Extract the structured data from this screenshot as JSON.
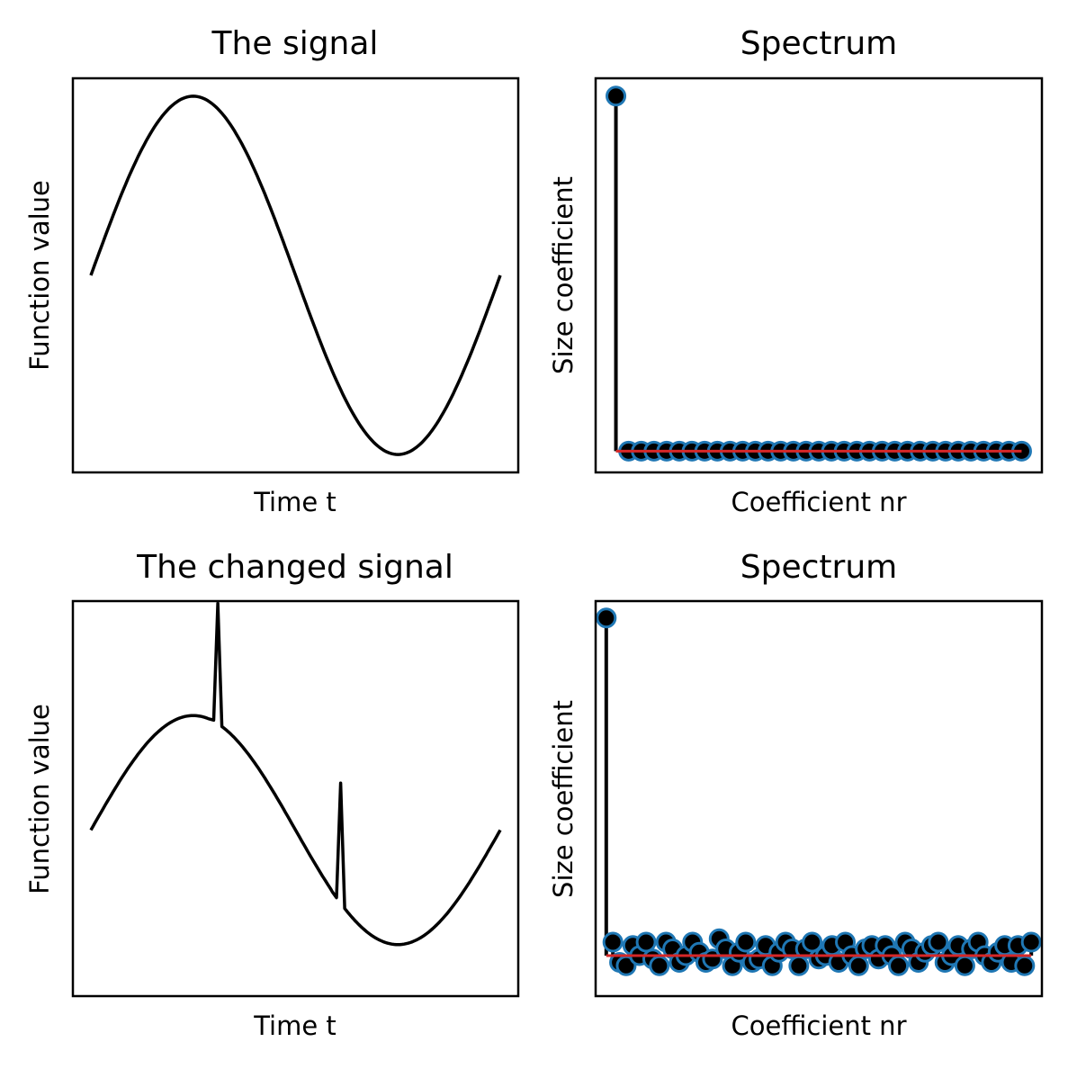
{
  "chart_data": [
    {
      "type": "line",
      "title": "The signal",
      "xlabel": "Time t",
      "ylabel": "Function value",
      "xticks": "none",
      "yticks": "none",
      "grid": false,
      "line_color": "#000000",
      "xlim": [
        0,
        1
      ],
      "ylim": [
        -1.1,
        1.1
      ],
      "x": [
        0.0,
        0.05,
        0.1,
        0.15,
        0.2,
        0.25,
        0.3,
        0.35,
        0.4,
        0.45,
        0.5,
        0.55,
        0.6,
        0.65,
        0.7,
        0.75,
        0.8,
        0.85,
        0.9,
        0.95,
        1.0
      ],
      "y": [
        0.0,
        0.31,
        0.59,
        0.81,
        0.95,
        1.0,
        0.95,
        0.81,
        0.59,
        0.31,
        0.0,
        -0.31,
        -0.59,
        -0.81,
        -0.95,
        -1.0,
        -0.95,
        -0.81,
        -0.59,
        -0.31,
        0.0
      ]
    },
    {
      "type": "stem",
      "title": "Spectrum",
      "xlabel": "Coefficient nr",
      "ylabel": "Size coefficient",
      "xticks": "none",
      "yticks": "none",
      "grid": false,
      "colors": {
        "stem": "#000000",
        "marker_face": "#000000",
        "marker_edge": "#1f77b4",
        "baseline": "#d62728"
      },
      "xlim": [
        -1.6,
        33.6
      ],
      "ylim": [
        -0.06,
        1.05
      ],
      "x": [
        0,
        1,
        2,
        3,
        4,
        5,
        6,
        7,
        8,
        9,
        10,
        11,
        12,
        13,
        14,
        15,
        16,
        17,
        18,
        19,
        20,
        21,
        22,
        23,
        24,
        25,
        26,
        27,
        28,
        29,
        30,
        31,
        32
      ],
      "values": [
        1.0,
        0,
        0,
        0,
        0,
        0,
        0,
        0,
        0,
        0,
        0,
        0,
        0,
        0,
        0,
        0,
        0,
        0,
        0,
        0,
        0,
        0,
        0,
        0,
        0,
        0,
        0,
        0,
        0,
        0,
        0,
        0,
        0
      ]
    },
    {
      "type": "line",
      "title": "The changed signal",
      "xlabel": "Time t",
      "ylabel": "Function value",
      "xticks": "none",
      "yticks": "none",
      "grid": false,
      "line_color": "#000000",
      "xlim": [
        0,
        1
      ],
      "ylim": [
        -1.1,
        1.1
      ],
      "x": [
        0.0,
        0.05,
        0.1,
        0.15,
        0.2,
        0.25,
        0.29,
        0.3,
        0.31,
        0.32,
        0.35,
        0.4,
        0.45,
        0.5,
        0.55,
        0.59,
        0.6,
        0.61,
        0.62,
        0.65,
        0.7,
        0.75,
        0.8,
        0.85,
        0.9,
        0.95,
        1.0
      ],
      "y": [
        0.0,
        0.31,
        0.59,
        0.81,
        0.95,
        1.0,
        0.97,
        0.96,
        1.98,
        0.93,
        0.81,
        0.59,
        0.31,
        0.0,
        -0.31,
        -0.54,
        -0.59,
        0.41,
        -0.65,
        -0.81,
        -0.95,
        -1.0,
        -0.95,
        -0.81,
        -0.59,
        -0.31,
        0.0
      ]
    },
    {
      "type": "stem",
      "title": "Spectrum",
      "xlabel": "Coefficient nr",
      "ylabel": "Size coefficient",
      "xticks": "none",
      "yticks": "none",
      "grid": false,
      "colors": {
        "stem": "#000000",
        "marker_face": "#000000",
        "marker_edge": "#1f77b4",
        "baseline": "#d62728"
      },
      "xlim": [
        -1.6,
        65.6
      ],
      "ylim": [
        -0.12,
        1.05
      ],
      "x": [
        0,
        1,
        2,
        3,
        4,
        5,
        6,
        7,
        8,
        9,
        10,
        11,
        12,
        13,
        14,
        15,
        16,
        17,
        18,
        19,
        20,
        21,
        22,
        23,
        24,
        25,
        26,
        27,
        28,
        29,
        30,
        31,
        32,
        33,
        34,
        35,
        36,
        37,
        38,
        39,
        40,
        41,
        42,
        43,
        44,
        45,
        46,
        47,
        48,
        49,
        50,
        51,
        52,
        53,
        54,
        55,
        56,
        57,
        58,
        59,
        60,
        61,
        62,
        63,
        64
      ],
      "values": [
        1.0,
        0.04,
        -0.02,
        -0.03,
        0.03,
        0.0,
        0.04,
        -0.01,
        -0.03,
        0.04,
        0.02,
        -0.02,
        0.0,
        0.04,
        0.01,
        -0.02,
        -0.01,
        0.05,
        0.02,
        -0.03,
        0.01,
        0.04,
        -0.02,
        -0.01,
        0.03,
        -0.03,
        0.01,
        0.04,
        0.02,
        -0.03,
        0.02,
        0.04,
        -0.01,
        0.0,
        0.03,
        -0.02,
        0.04,
        0.0,
        -0.03,
        0.02,
        0.03,
        -0.01,
        0.03,
        0.0,
        -0.03,
        0.04,
        0.02,
        -0.02,
        0.01,
        0.03,
        0.04,
        -0.02,
        0.0,
        0.03,
        -0.03,
        0.02,
        0.04,
        0.0,
        -0.02,
        0.01,
        0.03,
        -0.02,
        0.03,
        -0.03,
        0.04
      ]
    }
  ]
}
